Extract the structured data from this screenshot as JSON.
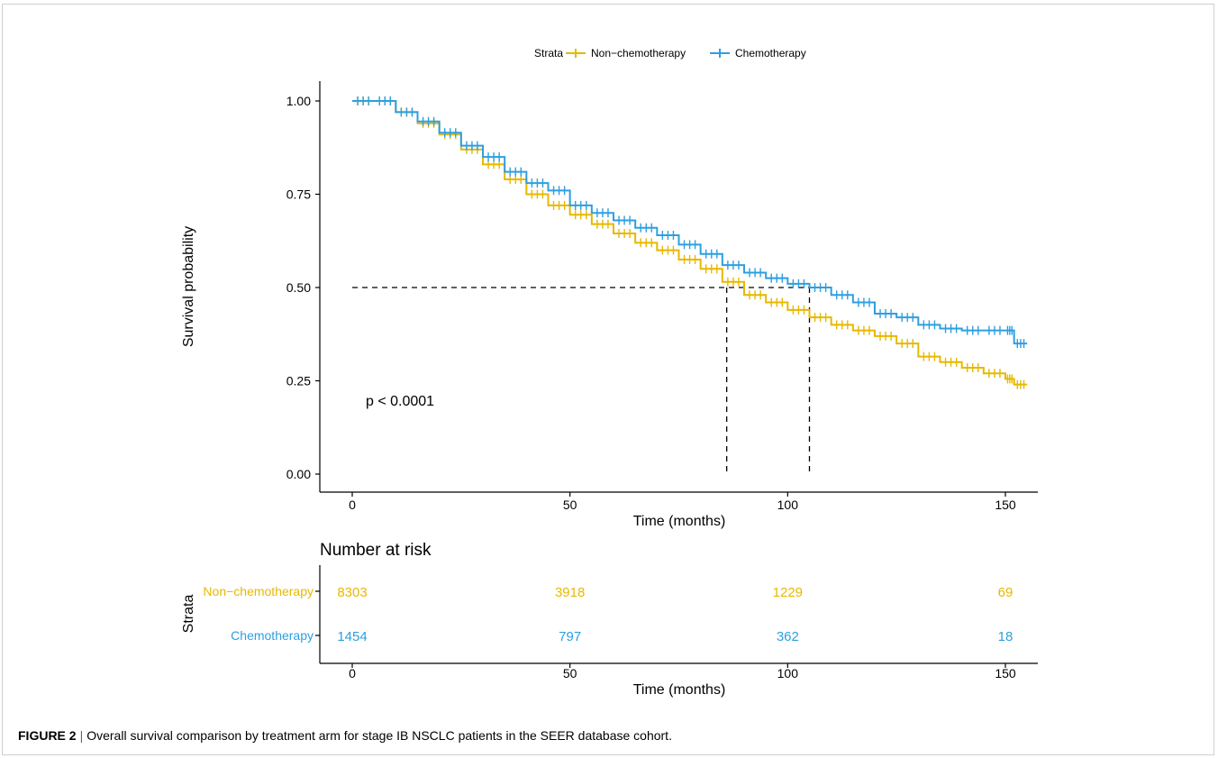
{
  "chart_data": {
    "type": "line",
    "subtype": "kaplan-meier",
    "legend": {
      "title": "Strata",
      "position": "top",
      "entries": [
        "Non−chemotherapy",
        "Chemotherapy"
      ]
    },
    "xlabel": "Time (months)",
    "ylabel": "Survival probability",
    "xlim": [
      0,
      155
    ],
    "ylim": [
      0,
      1
    ],
    "x_ticks": [
      0,
      50,
      100,
      150
    ],
    "y_ticks": [
      "0.00",
      "0.25",
      "0.50",
      "0.75",
      "1.00"
    ],
    "grid": false,
    "annotation": "p < 0.0001",
    "median_survival": {
      "y": 0.5,
      "x_values": [
        86,
        105
      ]
    },
    "series": [
      {
        "name": "Non−chemotherapy",
        "color": "#E7B800",
        "points": [
          [
            0,
            1.0
          ],
          [
            5,
            1.0
          ],
          [
            10,
            0.97
          ],
          [
            15,
            0.94
          ],
          [
            20,
            0.91
          ],
          [
            25,
            0.87
          ],
          [
            30,
            0.83
          ],
          [
            35,
            0.79
          ],
          [
            40,
            0.75
          ],
          [
            45,
            0.72
          ],
          [
            50,
            0.695
          ],
          [
            55,
            0.67
          ],
          [
            60,
            0.645
          ],
          [
            65,
            0.62
          ],
          [
            70,
            0.6
          ],
          [
            75,
            0.575
          ],
          [
            80,
            0.55
          ],
          [
            85,
            0.515
          ],
          [
            90,
            0.48
          ],
          [
            95,
            0.46
          ],
          [
            100,
            0.44
          ],
          [
            105,
            0.42
          ],
          [
            110,
            0.4
          ],
          [
            115,
            0.385
          ],
          [
            120,
            0.37
          ],
          [
            125,
            0.35
          ],
          [
            130,
            0.315
          ],
          [
            135,
            0.3
          ],
          [
            140,
            0.285
          ],
          [
            145,
            0.27
          ],
          [
            150,
            0.255
          ],
          [
            152,
            0.24
          ],
          [
            155,
            0.24
          ]
        ]
      },
      {
        "name": "Chemotherapy",
        "color": "#2E9FDF",
        "points": [
          [
            0,
            1.0
          ],
          [
            5,
            1.0
          ],
          [
            10,
            0.97
          ],
          [
            15,
            0.945
          ],
          [
            20,
            0.915
          ],
          [
            25,
            0.88
          ],
          [
            30,
            0.85
          ],
          [
            35,
            0.81
          ],
          [
            40,
            0.78
          ],
          [
            45,
            0.76
          ],
          [
            50,
            0.72
          ],
          [
            55,
            0.7
          ],
          [
            60,
            0.68
          ],
          [
            65,
            0.66
          ],
          [
            70,
            0.64
          ],
          [
            75,
            0.615
          ],
          [
            80,
            0.59
          ],
          [
            85,
            0.56
          ],
          [
            90,
            0.54
          ],
          [
            95,
            0.525
          ],
          [
            100,
            0.51
          ],
          [
            105,
            0.5
          ],
          [
            110,
            0.48
          ],
          [
            115,
            0.46
          ],
          [
            120,
            0.43
          ],
          [
            125,
            0.42
          ],
          [
            130,
            0.4
          ],
          [
            135,
            0.39
          ],
          [
            140,
            0.385
          ],
          [
            145,
            0.385
          ],
          [
            150,
            0.385
          ],
          [
            152,
            0.35
          ],
          [
            155,
            0.35
          ]
        ]
      }
    ],
    "risk_table": {
      "title": "Number at risk",
      "ylabel": "Strata",
      "xlabel": "Time (months)",
      "times": [
        0,
        50,
        100,
        150
      ],
      "rows": [
        {
          "name": "Non−chemotherapy",
          "color": "#E7B800",
          "values": [
            8303,
            3918,
            1229,
            69
          ]
        },
        {
          "name": "Chemotherapy",
          "color": "#2E9FDF",
          "values": [
            1454,
            797,
            362,
            18
          ]
        }
      ]
    }
  },
  "caption": {
    "label": "FIGURE 2",
    "separator": "|",
    "text": "Overall survival comparison by treatment arm for stage IB NSCLC patients in the SEER database cohort."
  }
}
